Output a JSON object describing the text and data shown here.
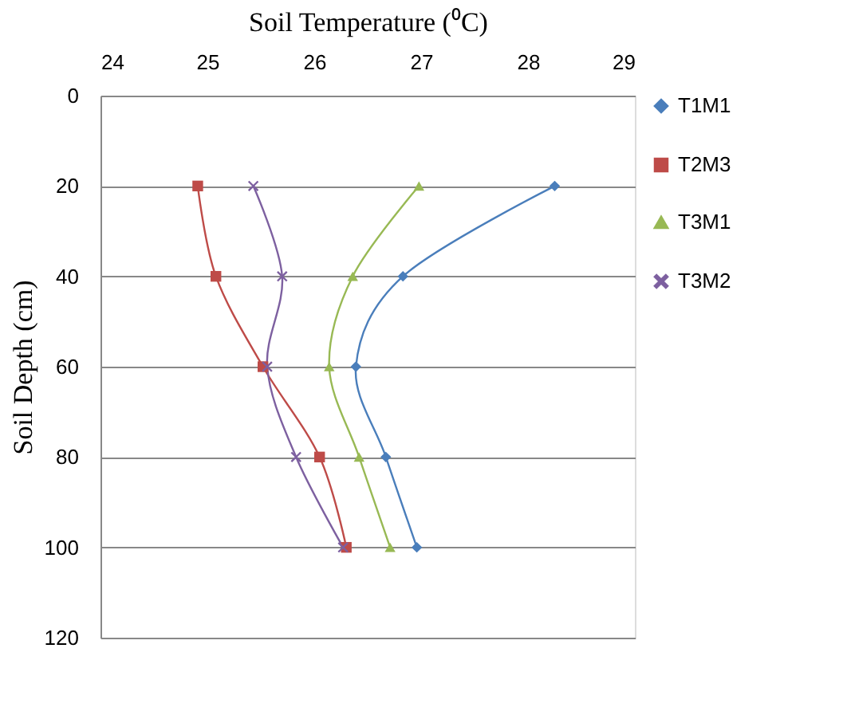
{
  "chart_data": {
    "type": "line",
    "xlabel": "Soil Temperature (⁰C)",
    "ylabel": "Soil Depth (cm)",
    "xlim": [
      24,
      29
    ],
    "xticks": [
      24,
      25,
      26,
      27,
      28,
      29
    ],
    "ylim": [
      120,
      0
    ],
    "yticks": [
      0,
      20,
      40,
      60,
      80,
      100,
      120
    ],
    "grid": "y",
    "legend": "right",
    "series": [
      {
        "name": "T1M1",
        "color": "#4a7ebb",
        "marker": "diamond",
        "x": [
          28.25,
          26.83,
          26.39,
          26.67,
          26.96
        ],
        "values": [
          20,
          40,
          60,
          80,
          100
        ]
      },
      {
        "name": "T2M3",
        "color": "#be4b48",
        "marker": "square",
        "x": [
          24.91,
          25.08,
          25.52,
          26.05,
          26.3
        ],
        "values": [
          20,
          40,
          60,
          80,
          100
        ]
      },
      {
        "name": "T3M1",
        "color": "#98b954",
        "marker": "triangle",
        "x": [
          26.98,
          26.36,
          26.14,
          26.42,
          26.71
        ],
        "values": [
          20,
          40,
          60,
          80,
          100
        ]
      },
      {
        "name": "T3M2",
        "color": "#7d60a0",
        "marker": "cross",
        "x": [
          25.43,
          25.7,
          25.56,
          25.83,
          26.27
        ],
        "values": [
          20,
          40,
          60,
          80,
          100
        ]
      }
    ]
  }
}
